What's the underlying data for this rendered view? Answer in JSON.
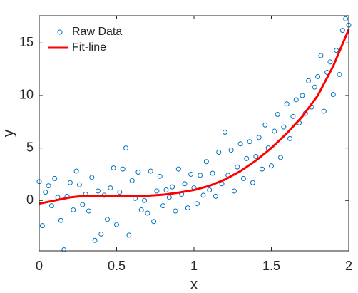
{
  "chart_data": {
    "type": "scatter",
    "xlabel": "x",
    "ylabel": "y",
    "xlim": [
      0,
      2
    ],
    "ylim": [
      -4.8,
      17.6
    ],
    "xticks": [
      0,
      0.5,
      1,
      1.5,
      2
    ],
    "yticks": [
      0,
      5,
      10,
      15
    ],
    "grid": false,
    "box": true,
    "legend": "top-left",
    "series": [
      {
        "name": "Raw Data",
        "color": "#0072BD",
        "mode": "markers",
        "x": [
          0,
          0.02,
          0.04,
          0.06,
          0.08,
          0.1,
          0.12,
          0.14,
          0.16,
          0.18,
          0.2,
          0.22,
          0.24,
          0.26,
          0.28,
          0.3,
          0.32,
          0.34,
          0.36,
          0.38,
          0.4,
          0.42,
          0.44,
          0.46,
          0.48,
          0.5,
          0.52,
          0.54,
          0.56,
          0.58,
          0.6,
          0.62,
          0.64,
          0.66,
          0.68,
          0.7,
          0.72,
          0.74,
          0.76,
          0.78,
          0.8,
          0.82,
          0.84,
          0.86,
          0.88,
          0.9,
          0.92,
          0.94,
          0.96,
          0.98,
          1,
          1.02,
          1.04,
          1.06,
          1.08,
          1.1,
          1.12,
          1.14,
          1.16,
          1.18,
          1.2,
          1.22,
          1.24,
          1.26,
          1.28,
          1.3,
          1.32,
          1.34,
          1.36,
          1.38,
          1.4,
          1.42,
          1.44,
          1.46,
          1.48,
          1.5,
          1.52,
          1.54,
          1.56,
          1.58,
          1.6,
          1.62,
          1.64,
          1.66,
          1.68,
          1.7,
          1.72,
          1.74,
          1.76,
          1.78,
          1.8,
          1.82,
          1.84,
          1.86,
          1.88,
          1.9,
          1.92,
          1.94,
          1.96,
          1.98,
          2
        ],
        "values": [
          1.8,
          -2.4,
          0.8,
          1.4,
          -0.5,
          2.1,
          0.3,
          -1.9,
          -4.7,
          0.4,
          1.7,
          -0.9,
          2.8,
          1.5,
          -0.4,
          0.6,
          -1.0,
          2.2,
          -3.8,
          0.9,
          -3.2,
          0.5,
          -1.8,
          1.2,
          3.1,
          -2.3,
          0.8,
          3.0,
          5.0,
          -3.3,
          1.9,
          0.2,
          2.7,
          -0.9,
          0.0,
          -1.2,
          2.8,
          -2.0,
          0.9,
          2.3,
          -0.5,
          1.0,
          0.3,
          1.3,
          -1.0,
          3.0,
          0.6,
          1.6,
          -0.7,
          2.5,
          1.2,
          -0.3,
          2.4,
          0.5,
          3.7,
          1.0,
          2.6,
          0.4,
          4.6,
          1.6,
          6.5,
          2.4,
          4.8,
          0.9,
          3.2,
          5.4,
          2.1,
          4.0,
          5.6,
          1.7,
          4.2,
          6.0,
          3.0,
          7.2,
          5.0,
          3.3,
          6.6,
          8.2,
          4.1,
          7.0,
          9.2,
          5.9,
          8.0,
          9.6,
          7.4,
          10.0,
          8.3,
          11.4,
          8.9,
          10.8,
          11.8,
          13.8,
          8.5,
          12.2,
          13.2,
          10.1,
          14.3,
          12.0,
          16.2,
          17.3,
          16.7
        ]
      },
      {
        "name": "Fit-line",
        "color": "#ff0000",
        "mode": "line",
        "x": [
          0,
          0.1,
          0.2,
          0.3,
          0.4,
          0.5,
          0.6,
          0.7,
          0.8,
          0.9,
          1,
          1.1,
          1.2,
          1.3,
          1.4,
          1.5,
          1.6,
          1.7,
          1.8,
          1.9,
          2
        ],
        "values": [
          -0.3,
          0.0,
          0.3,
          0.45,
          0.45,
          0.4,
          0.4,
          0.45,
          0.55,
          0.75,
          1.0,
          1.4,
          2.0,
          2.8,
          3.8,
          5.0,
          6.4,
          8.0,
          10.0,
          12.8,
          16.3
        ]
      }
    ]
  }
}
